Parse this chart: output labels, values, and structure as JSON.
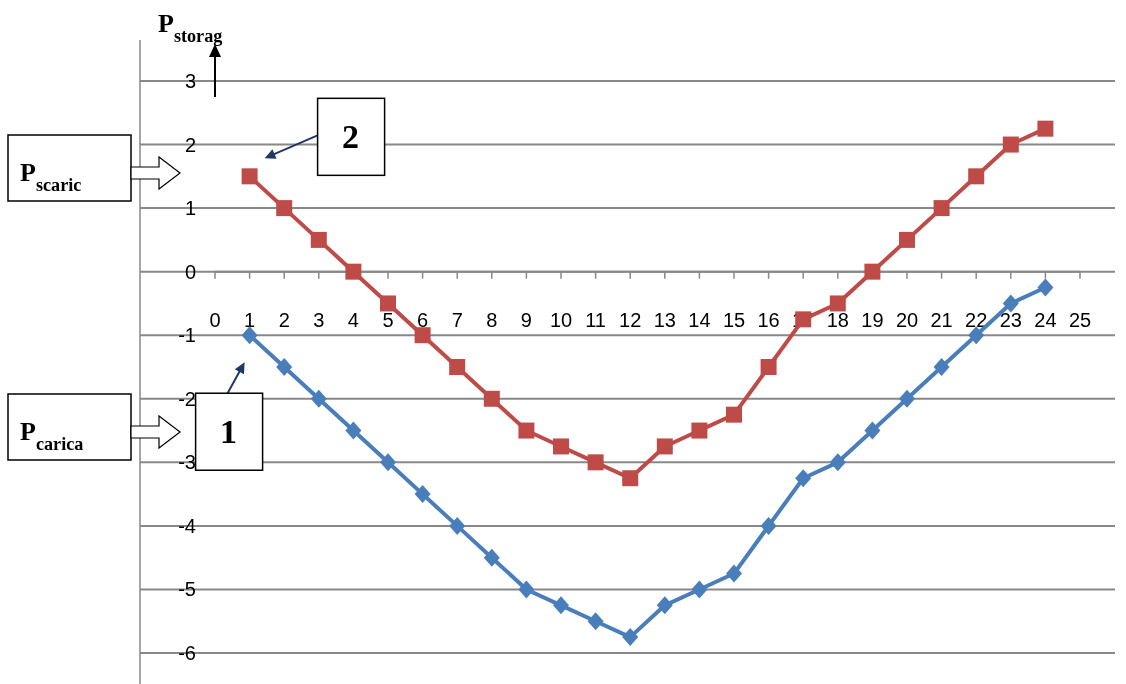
{
  "chart_data": {
    "type": "line",
    "ylabel": "P$_{storag}$",
    "annotations": [
      "P$_{scaric}$",
      "P$_{carica}$"
    ],
    "x": [
      1,
      2,
      3,
      4,
      5,
      6,
      7,
      8,
      9,
      10,
      11,
      12,
      13,
      14,
      15,
      16,
      17,
      18,
      19,
      20,
      21,
      22,
      23,
      24
    ],
    "xlim": [
      0,
      25
    ],
    "xticks": [
      0,
      1,
      2,
      3,
      4,
      5,
      6,
      7,
      8,
      9,
      10,
      11,
      12,
      13,
      14,
      15,
      16,
      17,
      18,
      19,
      20,
      21,
      22,
      23,
      24,
      25
    ],
    "ylim": [
      -6,
      3
    ],
    "yticks": [
      -6,
      -5,
      -4,
      -3,
      -2,
      -1,
      0,
      1,
      2,
      3
    ],
    "grid": "y",
    "series": [
      {
        "name": "1",
        "color": "#4a7ebb",
        "marker": "diamond",
        "values": [
          -1,
          -1.5,
          -2,
          -2.5,
          -3,
          -3.5,
          -4,
          -4.5,
          -5,
          -5.25,
          -5.5,
          -5.75,
          -5.25,
          -5,
          -4.75,
          -4,
          -3.25,
          -3,
          -2.5,
          -2,
          -1.5,
          -1,
          -0.5,
          -0.25
        ]
      },
      {
        "name": "2",
        "color": "#be4b48",
        "marker": "square",
        "values": [
          1.5,
          1,
          0.5,
          0,
          -0.5,
          -1,
          -1.5,
          -2,
          -2.5,
          -2.75,
          -3,
          -3.25,
          -2.75,
          -2.5,
          -2.25,
          -1.5,
          -0.75,
          -0.5,
          0,
          0.5,
          1,
          1.5,
          2,
          2.25
        ]
      }
    ]
  }
}
